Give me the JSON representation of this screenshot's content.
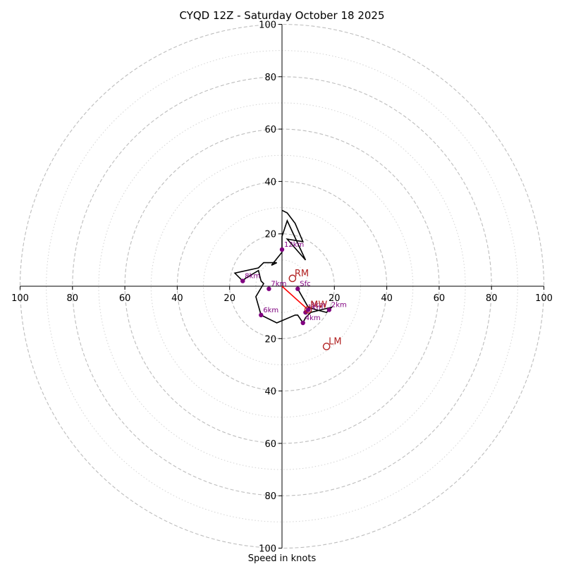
{
  "chart_data": {
    "type": "line",
    "title": "CYQD 12Z - Saturday October 18 2025",
    "xlabel": "Speed in knots",
    "ylabel": "",
    "xlim": [
      -100,
      100
    ],
    "ylim": [
      -100,
      100
    ],
    "rings": {
      "major": [
        20,
        40,
        60,
        80,
        100
      ],
      "minor": [
        10,
        30,
        50,
        70,
        90
      ]
    },
    "ticks": {
      "top": [
        "100",
        "80",
        "60",
        "40",
        "20"
      ],
      "bottom": [
        "20",
        "40",
        "60",
        "80",
        "100"
      ],
      "left": [
        "100",
        "80",
        "60",
        "40",
        "20"
      ],
      "right": [
        "20",
        "40",
        "60",
        "80",
        "100"
      ]
    },
    "hodograph": {
      "color": "#000000",
      "points": [
        [
          6,
          -1
        ],
        [
          10,
          -8
        ],
        [
          13,
          -9
        ],
        [
          17,
          -10
        ],
        [
          19,
          -8
        ],
        [
          15,
          -9
        ],
        [
          11,
          -10
        ],
        [
          9,
          -12
        ],
        [
          8,
          -14
        ],
        [
          6,
          -11
        ],
        [
          5,
          -11
        ],
        [
          -2,
          -14
        ],
        [
          -8,
          -11
        ],
        [
          -10,
          -4
        ],
        [
          -7,
          1
        ],
        [
          -8,
          2
        ],
        [
          -9,
          6
        ],
        [
          -14,
          3
        ],
        [
          -15,
          2
        ],
        [
          -18,
          5
        ],
        [
          -9,
          7
        ],
        [
          -7,
          9
        ],
        [
          -5,
          9
        ],
        [
          -2,
          9
        ],
        [
          -4,
          8
        ],
        [
          0,
          13
        ],
        [
          0,
          19
        ],
        [
          2,
          25
        ],
        [
          9,
          10
        ],
        [
          2,
          18
        ],
        [
          8,
          17
        ],
        [
          5,
          24
        ],
        [
          2,
          28
        ],
        [
          0,
          29
        ]
      ]
    },
    "height_markers": {
      "color": "#800080",
      "points": [
        {
          "label": "Sfc",
          "x": 6,
          "y": -1
        },
        {
          "label": "1km",
          "x": 9,
          "y": -10
        },
        {
          "label": "2km",
          "x": 18,
          "y": -9
        },
        {
          "label": "3km",
          "x": 10,
          "y": -9
        },
        {
          "label": "4km",
          "x": 8,
          "y": -14
        },
        {
          "label": "6km",
          "x": -8,
          "y": -11
        },
        {
          "label": "7km",
          "x": -5,
          "y": -1
        },
        {
          "label": "8km",
          "x": -15,
          "y": 2
        },
        {
          "label": "12km",
          "x": 0,
          "y": 14
        }
      ]
    },
    "motion_markers": {
      "color": "#b22222",
      "points": [
        {
          "label": "RM",
          "x": 4,
          "y": 3
        },
        {
          "label": "LM",
          "x": 17,
          "y": -23
        },
        {
          "label": "MW",
          "x": 10,
          "y": -9
        }
      ]
    },
    "shear_vector": {
      "color": "#ff0000",
      "from": [
        0,
        0
      ],
      "to": [
        10,
        -9
      ]
    }
  }
}
